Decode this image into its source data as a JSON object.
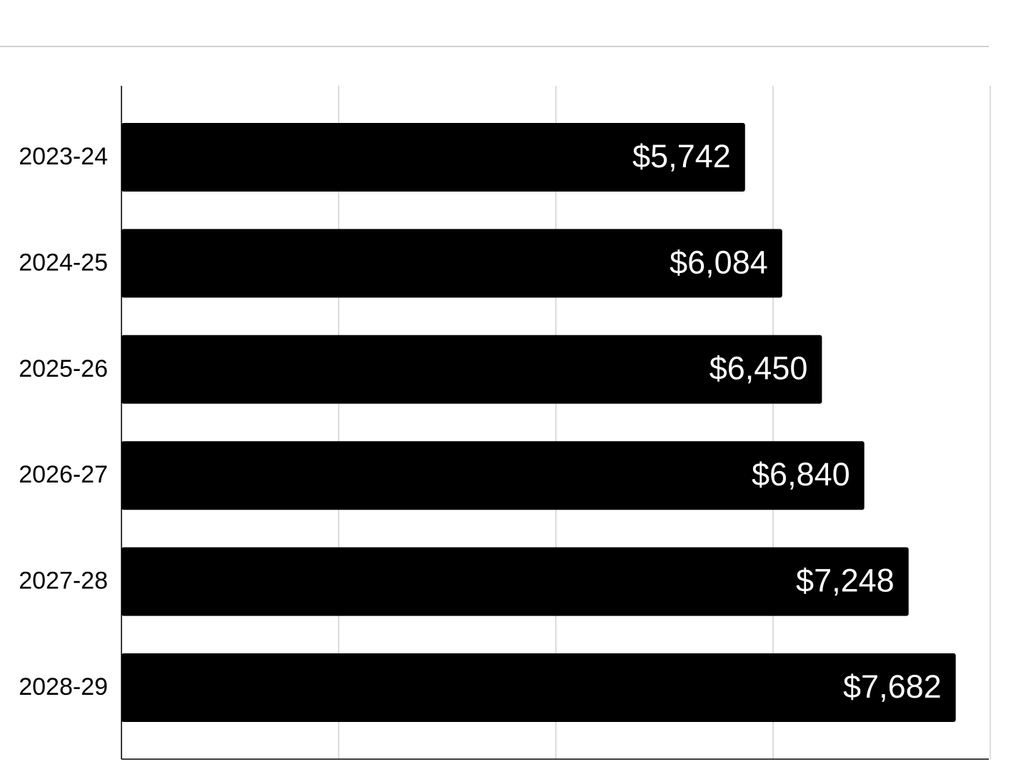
{
  "chart_data": {
    "type": "hbar",
    "categories": [
      "2023-24",
      "2024-25",
      "2025-26",
      "2026-27",
      "2027-28",
      "2028-29"
    ],
    "values": [
      5742,
      6084,
      6450,
      6840,
      7248,
      7682
    ],
    "value_labels": [
      "$5,742",
      "$6,084",
      "$6,450",
      "$6,840",
      "$7,248",
      "$7,682"
    ],
    "color": "#000000",
    "xlim": [
      0,
      8000
    ],
    "xticks": [
      0,
      2000,
      4000,
      6000,
      8000
    ],
    "grid": true
  }
}
